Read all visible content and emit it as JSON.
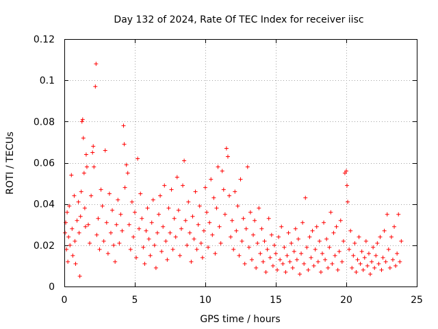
{
  "chart_data": {
    "type": "scatter",
    "title": "Day 132 of 2024, Rate Of TEC Index for receiver iisc",
    "xlabel": "GPS time / hours",
    "ylabel": "ROTI / TECUs",
    "xlim": [
      0,
      25
    ],
    "ylim": [
      0,
      0.12
    ],
    "xticks": [
      0,
      5,
      10,
      15,
      20,
      25
    ],
    "yticks": [
      0,
      0.02,
      0.04,
      0.06,
      0.08,
      0.1,
      0.12
    ],
    "xtick_labels": [
      "0",
      "5",
      "10",
      "15",
      "20",
      "25"
    ],
    "ytick_labels": [
      "0",
      "0.02",
      "0.04",
      "0.06",
      "0.08",
      "0.1",
      "0.12"
    ],
    "grid": true,
    "marker": "+",
    "color": "#ff0000",
    "series": [
      {
        "name": "ROTI",
        "points": [
          [
            0.05,
            0.026
          ],
          [
            0.1,
            0.031
          ],
          [
            0.15,
            0.018
          ],
          [
            0.2,
            0.036
          ],
          [
            0.25,
            0.012
          ],
          [
            0.3,
            0.024
          ],
          [
            0.35,
            0.039
          ],
          [
            0.4,
            0.02
          ],
          [
            0.5,
            0.054
          ],
          [
            0.55,
            0.028
          ],
          [
            0.6,
            0.015
          ],
          [
            0.7,
            0.044
          ],
          [
            0.75,
            0.022
          ],
          [
            0.8,
            0.011
          ],
          [
            0.9,
            0.032
          ],
          [
            1.0,
            0.041
          ],
          [
            1.05,
            0.026
          ],
          [
            1.1,
            0.005
          ],
          [
            1.15,
            0.034
          ],
          [
            1.2,
            0.046
          ],
          [
            1.25,
            0.08
          ],
          [
            1.3,
            0.081
          ],
          [
            1.35,
            0.072
          ],
          [
            1.4,
            0.055
          ],
          [
            1.45,
            0.038
          ],
          [
            1.5,
            0.029
          ],
          [
            1.55,
            0.064
          ],
          [
            1.6,
            0.058
          ],
          [
            1.7,
            0.03
          ],
          [
            1.8,
            0.021
          ],
          [
            1.9,
            0.044
          ],
          [
            2.0,
            0.065
          ],
          [
            2.05,
            0.068
          ],
          [
            2.1,
            0.058
          ],
          [
            2.2,
            0.097
          ],
          [
            2.25,
            0.108
          ],
          [
            2.3,
            0.025
          ],
          [
            2.4,
            0.033
          ],
          [
            2.5,
            0.018
          ],
          [
            2.6,
            0.047
          ],
          [
            2.7,
            0.039
          ],
          [
            2.8,
            0.022
          ],
          [
            2.9,
            0.066
          ],
          [
            3.0,
            0.031
          ],
          [
            3.1,
            0.016
          ],
          [
            3.2,
            0.045
          ],
          [
            3.3,
            0.026
          ],
          [
            3.4,
            0.037
          ],
          [
            3.5,
            0.02
          ],
          [
            3.6,
            0.012
          ],
          [
            3.7,
            0.03
          ],
          [
            3.8,
            0.042
          ],
          [
            3.9,
            0.021
          ],
          [
            4.0,
            0.035
          ],
          [
            4.1,
            0.027
          ],
          [
            4.2,
            0.078
          ],
          [
            4.25,
            0.069
          ],
          [
            4.3,
            0.048
          ],
          [
            4.4,
            0.059
          ],
          [
            4.5,
            0.055
          ],
          [
            4.6,
            0.03
          ],
          [
            4.7,
            0.018
          ],
          [
            4.8,
            0.041
          ],
          [
            4.9,
            0.024
          ],
          [
            5.0,
            0.036
          ],
          [
            5.1,
            0.014
          ],
          [
            5.2,
            0.062
          ],
          [
            5.3,
            0.028
          ],
          [
            5.4,
            0.045
          ],
          [
            5.5,
            0.033
          ],
          [
            5.6,
            0.019
          ],
          [
            5.7,
            0.011
          ],
          [
            5.8,
            0.027
          ],
          [
            5.9,
            0.038
          ],
          [
            6.0,
            0.023
          ],
          [
            6.1,
            0.015
          ],
          [
            6.2,
            0.031
          ],
          [
            6.3,
            0.042
          ],
          [
            6.4,
            0.02
          ],
          [
            6.5,
            0.009
          ],
          [
            6.6,
            0.026
          ],
          [
            6.7,
            0.035
          ],
          [
            6.8,
            0.044
          ],
          [
            6.9,
            0.017
          ],
          [
            7.0,
            0.029
          ],
          [
            7.1,
            0.049
          ],
          [
            7.2,
            0.022
          ],
          [
            7.3,
            0.013
          ],
          [
            7.4,
            0.038
          ],
          [
            7.5,
            0.026
          ],
          [
            7.6,
            0.047
          ],
          [
            7.7,
            0.018
          ],
          [
            7.8,
            0.033
          ],
          [
            7.9,
            0.024
          ],
          [
            8.0,
            0.053
          ],
          [
            8.1,
            0.037
          ],
          [
            8.2,
            0.015
          ],
          [
            8.3,
            0.028
          ],
          [
            8.4,
            0.049
          ],
          [
            8.5,
            0.061
          ],
          [
            8.6,
            0.032
          ],
          [
            8.7,
            0.02
          ],
          [
            8.8,
            0.041
          ],
          [
            8.9,
            0.026
          ],
          [
            9.0,
            0.012
          ],
          [
            9.1,
            0.034
          ],
          [
            9.2,
            0.023
          ],
          [
            9.3,
            0.046
          ],
          [
            9.4,
            0.018
          ],
          [
            9.5,
            0.03
          ],
          [
            9.6,
            0.039
          ],
          [
            9.7,
            0.021
          ],
          [
            9.8,
            0.014
          ],
          [
            9.9,
            0.027
          ],
          [
            10.0,
            0.048
          ],
          [
            10.1,
            0.036
          ],
          [
            10.2,
            0.019
          ],
          [
            10.3,
            0.031
          ],
          [
            10.4,
            0.052
          ],
          [
            10.5,
            0.025
          ],
          [
            10.6,
            0.043
          ],
          [
            10.7,
            0.016
          ],
          [
            10.8,
            0.038
          ],
          [
            10.9,
            0.058
          ],
          [
            11.0,
            0.029
          ],
          [
            11.1,
            0.021
          ],
          [
            11.2,
            0.056
          ],
          [
            11.3,
            0.047
          ],
          [
            11.4,
            0.035
          ],
          [
            11.5,
            0.067
          ],
          [
            11.6,
            0.063
          ],
          [
            11.7,
            0.044
          ],
          [
            11.8,
            0.024
          ],
          [
            11.9,
            0.032
          ],
          [
            12.0,
            0.018
          ],
          [
            12.1,
            0.046
          ],
          [
            12.2,
            0.027
          ],
          [
            12.3,
            0.039
          ],
          [
            12.4,
            0.015
          ],
          [
            12.5,
            0.052
          ],
          [
            12.6,
            0.022
          ],
          [
            12.7,
            0.033
          ],
          [
            12.8,
            0.011
          ],
          [
            12.9,
            0.028
          ],
          [
            13.0,
            0.058
          ],
          [
            13.1,
            0.019
          ],
          [
            13.2,
            0.036
          ],
          [
            13.3,
            0.013
          ],
          [
            13.4,
            0.025
          ],
          [
            13.5,
            0.032
          ],
          [
            13.6,
            0.009
          ],
          [
            13.7,
            0.021
          ],
          [
            13.8,
            0.038
          ],
          [
            13.9,
            0.016
          ],
          [
            14.0,
            0.028
          ],
          [
            14.1,
            0.012
          ],
          [
            14.2,
            0.022
          ],
          [
            14.3,
            0.007
          ],
          [
            14.4,
            0.018
          ],
          [
            14.5,
            0.033
          ],
          [
            14.6,
            0.014
          ],
          [
            14.7,
            0.025
          ],
          [
            14.8,
            0.01
          ],
          [
            14.9,
            0.02
          ],
          [
            15.0,
            0.016
          ],
          [
            15.1,
            0.008
          ],
          [
            15.2,
            0.024
          ],
          [
            15.3,
            0.013
          ],
          [
            15.4,
            0.029
          ],
          [
            15.5,
            0.011
          ],
          [
            15.6,
            0.019
          ],
          [
            15.7,
            0.007
          ],
          [
            15.8,
            0.015
          ],
          [
            15.9,
            0.026
          ],
          [
            16.0,
            0.012
          ],
          [
            16.1,
            0.021
          ],
          [
            16.2,
            0.009
          ],
          [
            16.3,
            0.017
          ],
          [
            16.4,
            0.028
          ],
          [
            16.5,
            0.013
          ],
          [
            16.6,
            0.023
          ],
          [
            16.7,
            0.006
          ],
          [
            16.8,
            0.016
          ],
          [
            16.9,
            0.031
          ],
          [
            17.0,
            0.011
          ],
          [
            17.1,
            0.043
          ],
          [
            17.2,
            0.019
          ],
          [
            17.3,
            0.008
          ],
          [
            17.4,
            0.024
          ],
          [
            17.5,
            0.014
          ],
          [
            17.6,
            0.027
          ],
          [
            17.7,
            0.01
          ],
          [
            17.8,
            0.018
          ],
          [
            17.9,
            0.029
          ],
          [
            18.0,
            0.012
          ],
          [
            18.1,
            0.022
          ],
          [
            18.2,
            0.007
          ],
          [
            18.3,
            0.016
          ],
          [
            18.4,
            0.031
          ],
          [
            18.5,
            0.013
          ],
          [
            18.6,
            0.023
          ],
          [
            18.7,
            0.009
          ],
          [
            18.8,
            0.019
          ],
          [
            18.9,
            0.036
          ],
          [
            19.0,
            0.011
          ],
          [
            19.1,
            0.026
          ],
          [
            19.2,
            0.015
          ],
          [
            19.3,
            0.029
          ],
          [
            19.4,
            0.008
          ],
          [
            19.5,
            0.017
          ],
          [
            19.6,
            0.032
          ],
          [
            19.7,
            0.012
          ],
          [
            19.8,
            0.022
          ],
          [
            19.9,
            0.055
          ],
          [
            20.0,
            0.056
          ],
          [
            20.05,
            0.049
          ],
          [
            20.1,
            0.041
          ],
          [
            20.2,
            0.018
          ],
          [
            20.3,
            0.027
          ],
          [
            20.4,
            0.009
          ],
          [
            20.5,
            0.015
          ],
          [
            20.6,
            0.021
          ],
          [
            20.7,
            0.007
          ],
          [
            20.8,
            0.013
          ],
          [
            20.9,
            0.024
          ],
          [
            21.0,
            0.011
          ],
          [
            21.1,
            0.017
          ],
          [
            21.2,
            0.008
          ],
          [
            21.3,
            0.014
          ],
          [
            21.4,
            0.022
          ],
          [
            21.5,
            0.01
          ],
          [
            21.6,
            0.016
          ],
          [
            21.7,
            0.006
          ],
          [
            21.8,
            0.012
          ],
          [
            21.9,
            0.019
          ],
          [
            22.0,
            0.009
          ],
          [
            22.1,
            0.015
          ],
          [
            22.2,
            0.021
          ],
          [
            22.3,
            0.011
          ],
          [
            22.4,
            0.024
          ],
          [
            22.5,
            0.008
          ],
          [
            22.6,
            0.014
          ],
          [
            22.7,
            0.027
          ],
          [
            22.8,
            0.012
          ],
          [
            22.9,
            0.035
          ],
          [
            23.0,
            0.018
          ],
          [
            23.1,
            0.009
          ],
          [
            23.2,
            0.024
          ],
          [
            23.3,
            0.013
          ],
          [
            23.4,
            0.029
          ],
          [
            23.5,
            0.01
          ],
          [
            23.6,
            0.016
          ],
          [
            23.7,
            0.035
          ],
          [
            23.8,
            0.012
          ],
          [
            23.9,
            0.022
          ]
        ]
      }
    ]
  }
}
